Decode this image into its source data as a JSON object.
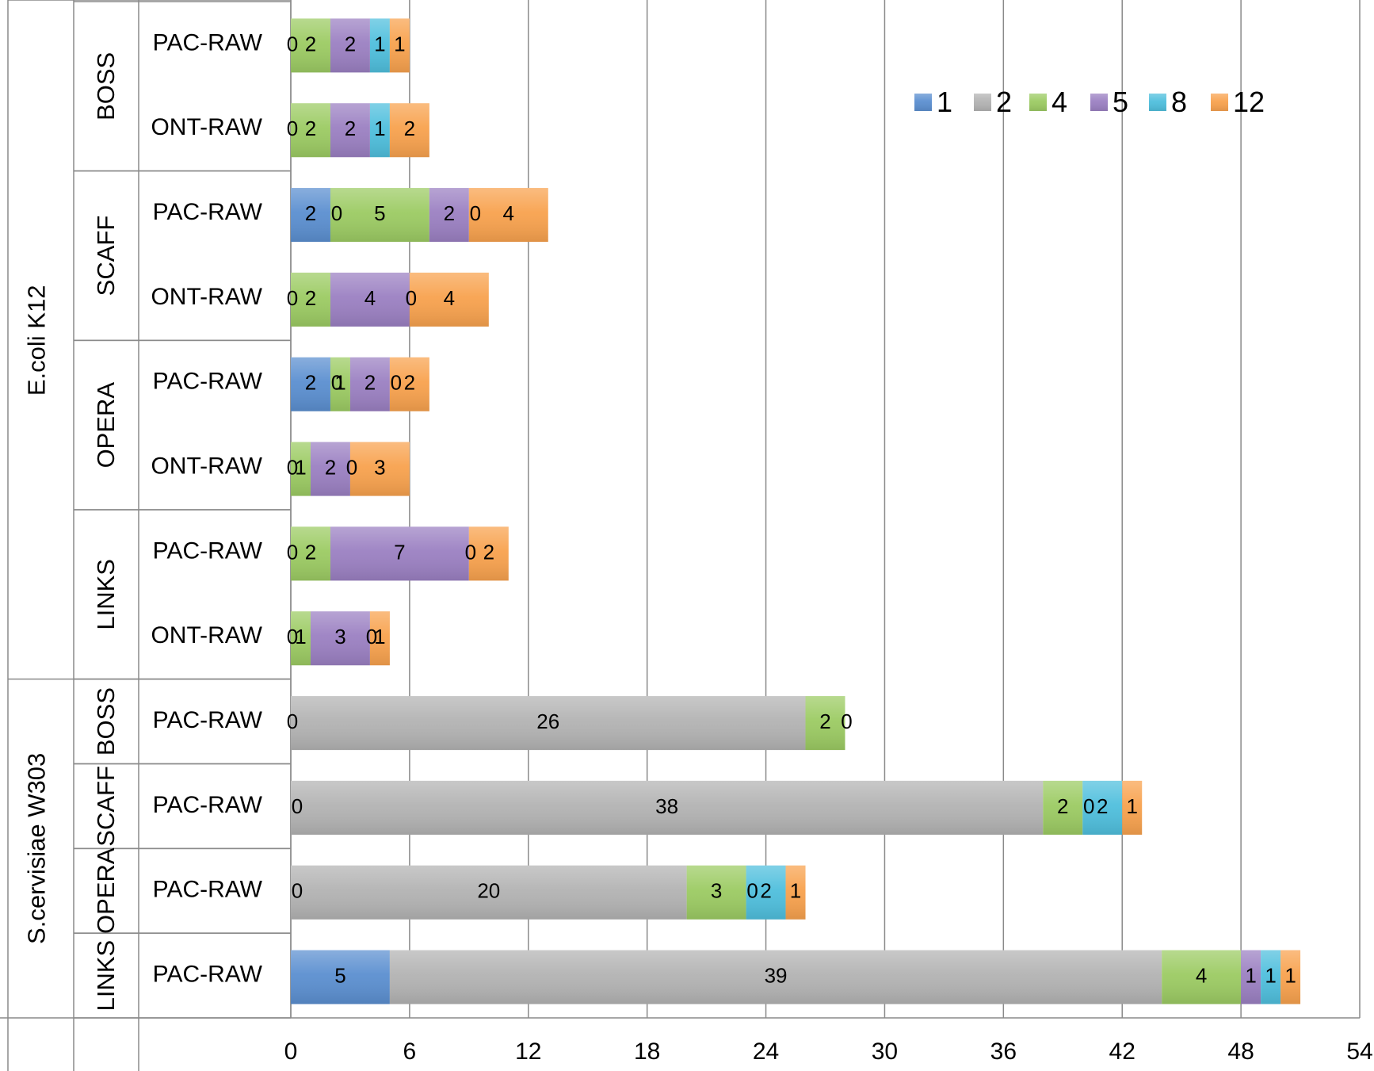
{
  "chart_data": {
    "type": "bar",
    "orientation": "horizontal",
    "stacked": true,
    "title": "",
    "xlabel": "",
    "ylabel": "",
    "xlim": [
      0,
      54
    ],
    "x_ticks": [
      0,
      6,
      12,
      18,
      24,
      30,
      36,
      42,
      48,
      54
    ],
    "grid": true,
    "legend_position": "top-right",
    "series": [
      {
        "name": "1",
        "color": "#5b8fd0"
      },
      {
        "name": "2",
        "color": "#b3b3b3"
      },
      {
        "name": "4",
        "color": "#9ccb63"
      },
      {
        "name": "5",
        "color": "#9b80c2"
      },
      {
        "name": "8",
        "color": "#4fbfdd"
      },
      {
        "name": "12",
        "color": "#f8a24e"
      }
    ],
    "groups": [
      {
        "organism": "E.coli K12",
        "tool": "BOSS",
        "read": "PAC-RAW",
        "values": [
          0,
          0,
          2,
          2,
          1,
          1
        ]
      },
      {
        "organism": "E.coli K12",
        "tool": "BOSS",
        "read": "ONT-RAW",
        "values": [
          0,
          0,
          2,
          2,
          1,
          2
        ]
      },
      {
        "organism": "E.coli K12",
        "tool": "SCAFF",
        "read": "PAC-RAW",
        "values": [
          2,
          0,
          5,
          2,
          0,
          4
        ]
      },
      {
        "organism": "E.coli K12",
        "tool": "SCAFF",
        "read": "ONT-RAW",
        "values": [
          0,
          0,
          2,
          4,
          0,
          4
        ]
      },
      {
        "organism": "E.coli K12",
        "tool": "OPERA",
        "read": "PAC-RAW",
        "values": [
          2,
          0,
          1,
          2,
          0,
          2
        ]
      },
      {
        "organism": "E.coli K12",
        "tool": "OPERA",
        "read": "ONT-RAW",
        "values": [
          0,
          0,
          1,
          2,
          0,
          3
        ]
      },
      {
        "organism": "E.coli K12",
        "tool": "LINKS",
        "read": "PAC-RAW",
        "values": [
          0,
          0,
          2,
          7,
          0,
          2
        ]
      },
      {
        "organism": "E.coli K12",
        "tool": "LINKS",
        "read": "ONT-RAW",
        "values": [
          0,
          0,
          1,
          3,
          0,
          1
        ]
      },
      {
        "organism": "S.cervisiae  W303",
        "tool": "BOSS",
        "read": "PAC-RAW",
        "values": [
          0,
          26,
          2,
          0,
          0,
          0
        ]
      },
      {
        "organism": "S.cervisiae  W303",
        "tool": "SCAFF",
        "read": "PAC-RAW",
        "values": [
          0,
          38,
          2,
          0,
          2,
          1
        ]
      },
      {
        "organism": "S.cervisiae  W303",
        "tool": "OPERA",
        "read": "PAC-RAW",
        "values": [
          0,
          20,
          3,
          0,
          2,
          1
        ]
      },
      {
        "organism": "S.cervisiae  W303",
        "tool": "LINKS",
        "read": "PAC-RAW",
        "values": [
          5,
          39,
          4,
          1,
          1,
          1
        ]
      }
    ],
    "bar_labels": [
      [
        "0",
        "2",
        "2",
        "1",
        "1"
      ],
      [
        "0",
        "2",
        "2",
        "1",
        "2"
      ],
      [
        "2",
        "0",
        "5",
        "2",
        "0",
        "4"
      ],
      [
        "0",
        "2",
        "4",
        "0",
        "4"
      ],
      [
        "2",
        "0",
        "1",
        "2",
        "0",
        "2"
      ],
      [
        "0",
        "1",
        "2",
        "0",
        "3"
      ],
      [
        "0",
        "2",
        "7",
        "0",
        "2"
      ],
      [
        "0",
        "1",
        "3",
        "0",
        "1"
      ],
      [
        "0",
        "26",
        "2",
        "0"
      ],
      [
        "0",
        "38",
        "2",
        "0",
        "2",
        "1"
      ],
      [
        "0",
        "20",
        "3",
        "0",
        "2",
        "1"
      ],
      [
        "5",
        "39",
        "4",
        "1",
        "1",
        "1"
      ]
    ]
  }
}
